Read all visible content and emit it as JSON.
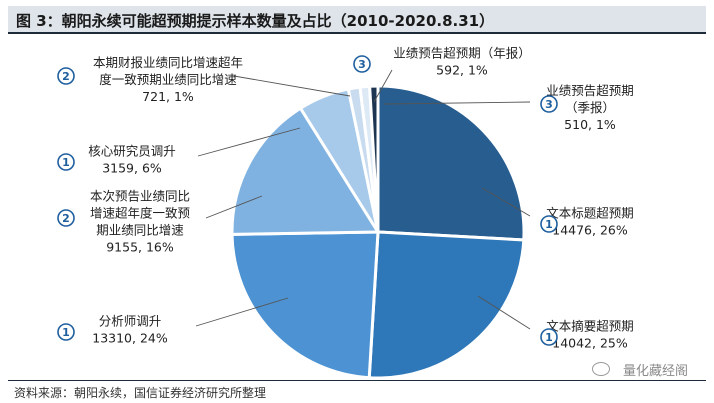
{
  "header": {
    "title": "图 3：朝阳永续可能超预期提示样本数量及占比（2010-2020.8.31）"
  },
  "footer": {
    "source": "资料来源：朝阳永续，国信证券经济研究所整理",
    "watermark": "量化藏经阁"
  },
  "chart_data": {
    "type": "pie",
    "title": "图 3：朝阳永续可能超预期提示样本数量及占比（2010-2020.8.31）",
    "slices": [
      {
        "name": "文本标题超预期",
        "name_lines": [
          "文本标题超预期"
        ],
        "value": 14476,
        "percent": "26%",
        "badge": "1",
        "color": "#275d8f"
      },
      {
        "name": "文本摘要超预期",
        "name_lines": [
          "文本摘要超预期"
        ],
        "value": 14042,
        "percent": "25%",
        "badge": "1",
        "color": "#2e77b8"
      },
      {
        "name": "分析师调升",
        "name_lines": [
          "分析师调升"
        ],
        "value": 13310,
        "percent": "24%",
        "badge": "1",
        "color": "#4d93d3"
      },
      {
        "name": "本次预告业绩同比增速超年度一致预期业绩同比增速",
        "name_lines": [
          "本次预告业绩同比",
          "增速超年度一致预",
          "期业绩同比增速"
        ],
        "value": 9155,
        "percent": "16%",
        "badge": "2",
        "color": "#7fb2e0"
      },
      {
        "name": "核心研究员调升",
        "name_lines": [
          "核心研究员调升"
        ],
        "value": 3159,
        "percent": "6%",
        "badge": "1",
        "color": "#a7c9ea"
      },
      {
        "name": "本期财报业绩同比增速超年度一致预期业绩同比增速",
        "name_lines": [
          "本期财报业绩同比增速超年",
          "度一致预期业绩同比增速"
        ],
        "value": 721,
        "percent": "1%",
        "badge": "2",
        "color": "#c9dcef"
      },
      {
        "name": "业绩预告超预期（年报）",
        "name_lines": [
          "业绩预告超预期（年报）"
        ],
        "value": 592,
        "percent": "1%",
        "badge": "3",
        "color": "#dde9f5"
      },
      {
        "name": "业绩预告超预期（季报）",
        "name_lines": [
          "业绩预告超预期",
          "（季报）"
        ],
        "value": 510,
        "percent": "1%",
        "badge": "3",
        "color": "#1d3550"
      }
    ]
  }
}
